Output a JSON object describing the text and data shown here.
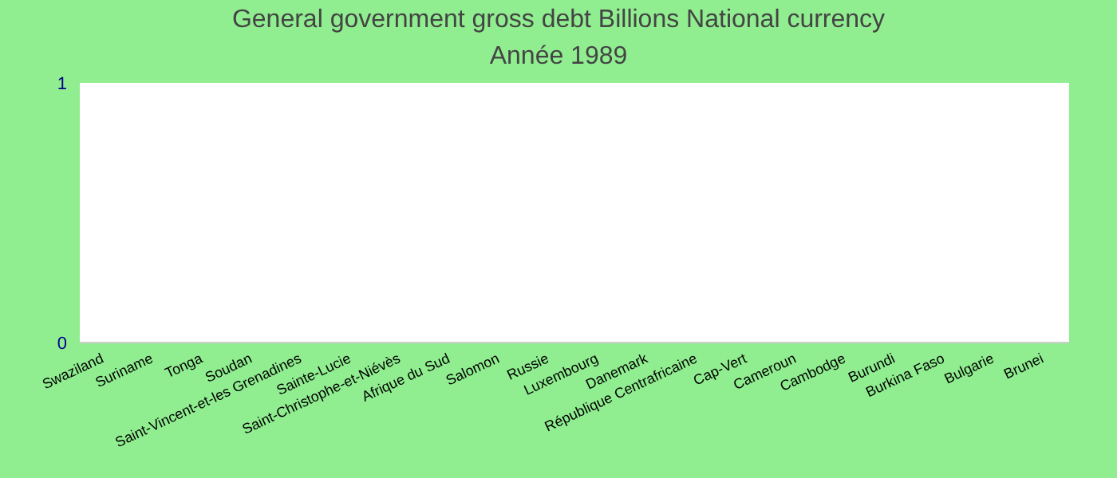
{
  "chart_data": {
    "type": "bar",
    "title": "General government gross debt Billions National currency",
    "subtitle": "Année 1989",
    "categories": [
      "Swaziland",
      "Suriname",
      "Tonga",
      "Soudan",
      "Saint-Vincent-et-les Grenadines",
      "Sainte-Lucie",
      "Saint-Christophe-et-Niévès",
      "Afrique du Sud",
      "Salomon",
      "Russie",
      "Luxembourg",
      "Danemark",
      "République Centrafricaine",
      "Cap-Vert",
      "Cameroun",
      "Cambodge",
      "Burundi",
      "Burkina Faso",
      "Bulgarie",
      "Brunei"
    ],
    "values": [
      0,
      0,
      0,
      0,
      0,
      0,
      0,
      0,
      0,
      0,
      0,
      0,
      0,
      0,
      0,
      0,
      0,
      0,
      0,
      0
    ],
    "ylim": [
      0,
      1
    ],
    "yticks": [
      0,
      1
    ]
  }
}
